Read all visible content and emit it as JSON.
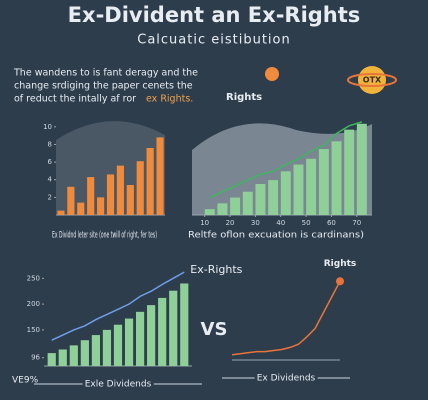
{
  "header": {
    "title": "Ex-Divident an Ex-Rights",
    "subtitle": "Calcuatic eistibution"
  },
  "intro": {
    "lines": [
      "The wandens to is fant deragy and the",
      "change srdiging the paper cenets the",
      "of reduct the intally af ror"
    ],
    "highlight": "ex Rights."
  },
  "icon_label": "Rights",
  "badge": "OTX",
  "vs": "VS",
  "footnote": "VE9%",
  "chart_data": [
    {
      "type": "bar",
      "color": "#f08a3c",
      "categories": [
        null,
        null,
        null,
        null,
        null,
        null,
        null,
        null,
        null,
        null,
        null
      ],
      "values": [
        0.5,
        3.2,
        1.4,
        4.3,
        2,
        4.6,
        5.6,
        3.4,
        6.1,
        7.6,
        8.8
      ],
      "ylim": [
        0,
        11
      ],
      "yticks": [
        2,
        4,
        6,
        8,
        10
      ],
      "caption": "Ex Dividnd leter site (one twill of right, fer tes)"
    },
    {
      "type": "barline",
      "color": "#8fcf98",
      "line_color": "#3fb560",
      "x": [
        12,
        17,
        22,
        27,
        32,
        37,
        42,
        47,
        52,
        57,
        62,
        67,
        72
      ],
      "values": [
        0.6,
        1.2,
        1.8,
        2.4,
        3.2,
        3.6,
        4.5,
        5.2,
        5.8,
        6.8,
        7.6,
        8.8,
        9.4
      ],
      "line": [
        1.8,
        2.4,
        3,
        3.6,
        4.2,
        4.5,
        5.2,
        5.8,
        6.6,
        7.2,
        8.4,
        9.2,
        9.6
      ],
      "xlim": [
        5,
        76
      ],
      "ylim": [
        0,
        10
      ],
      "xticks": [
        10,
        20,
        30,
        40,
        50,
        60,
        70
      ],
      "caption": "Reltfe oflon excuation is cardinans)"
    },
    {
      "type": "barline",
      "color": "#8fcf98",
      "line_color": "#6e9ee8",
      "x": [
        1,
        2,
        3,
        4,
        5,
        6,
        7,
        8,
        9,
        10,
        11,
        12,
        13
      ],
      "values": [
        105,
        112,
        120,
        130,
        140,
        150,
        160,
        172,
        185,
        198,
        212,
        226,
        240
      ],
      "line": [
        130,
        140,
        150,
        158,
        170,
        180,
        190,
        200,
        215,
        225,
        238,
        250,
        262
      ],
      "xlim": [
        0.3,
        13.7
      ],
      "ylim": [
        80,
        270
      ],
      "yticks": [
        96,
        150,
        200,
        250
      ],
      "annotation": "Ex-Rights",
      "xlabel": "Exle Dividends"
    },
    {
      "type": "line",
      "color": "#e8743a",
      "x": [
        1,
        2,
        3,
        4,
        5,
        6,
        7,
        8,
        9,
        10,
        11,
        12,
        13,
        14
      ],
      "values": [
        5,
        6,
        7,
        8,
        8,
        9,
        10,
        12,
        15,
        22,
        30,
        45,
        60,
        75
      ],
      "xlim": [
        1,
        14
      ],
      "ylim": [
        0,
        80
      ],
      "annotation": "Rights",
      "xlabel": "Ex Dividends"
    }
  ]
}
